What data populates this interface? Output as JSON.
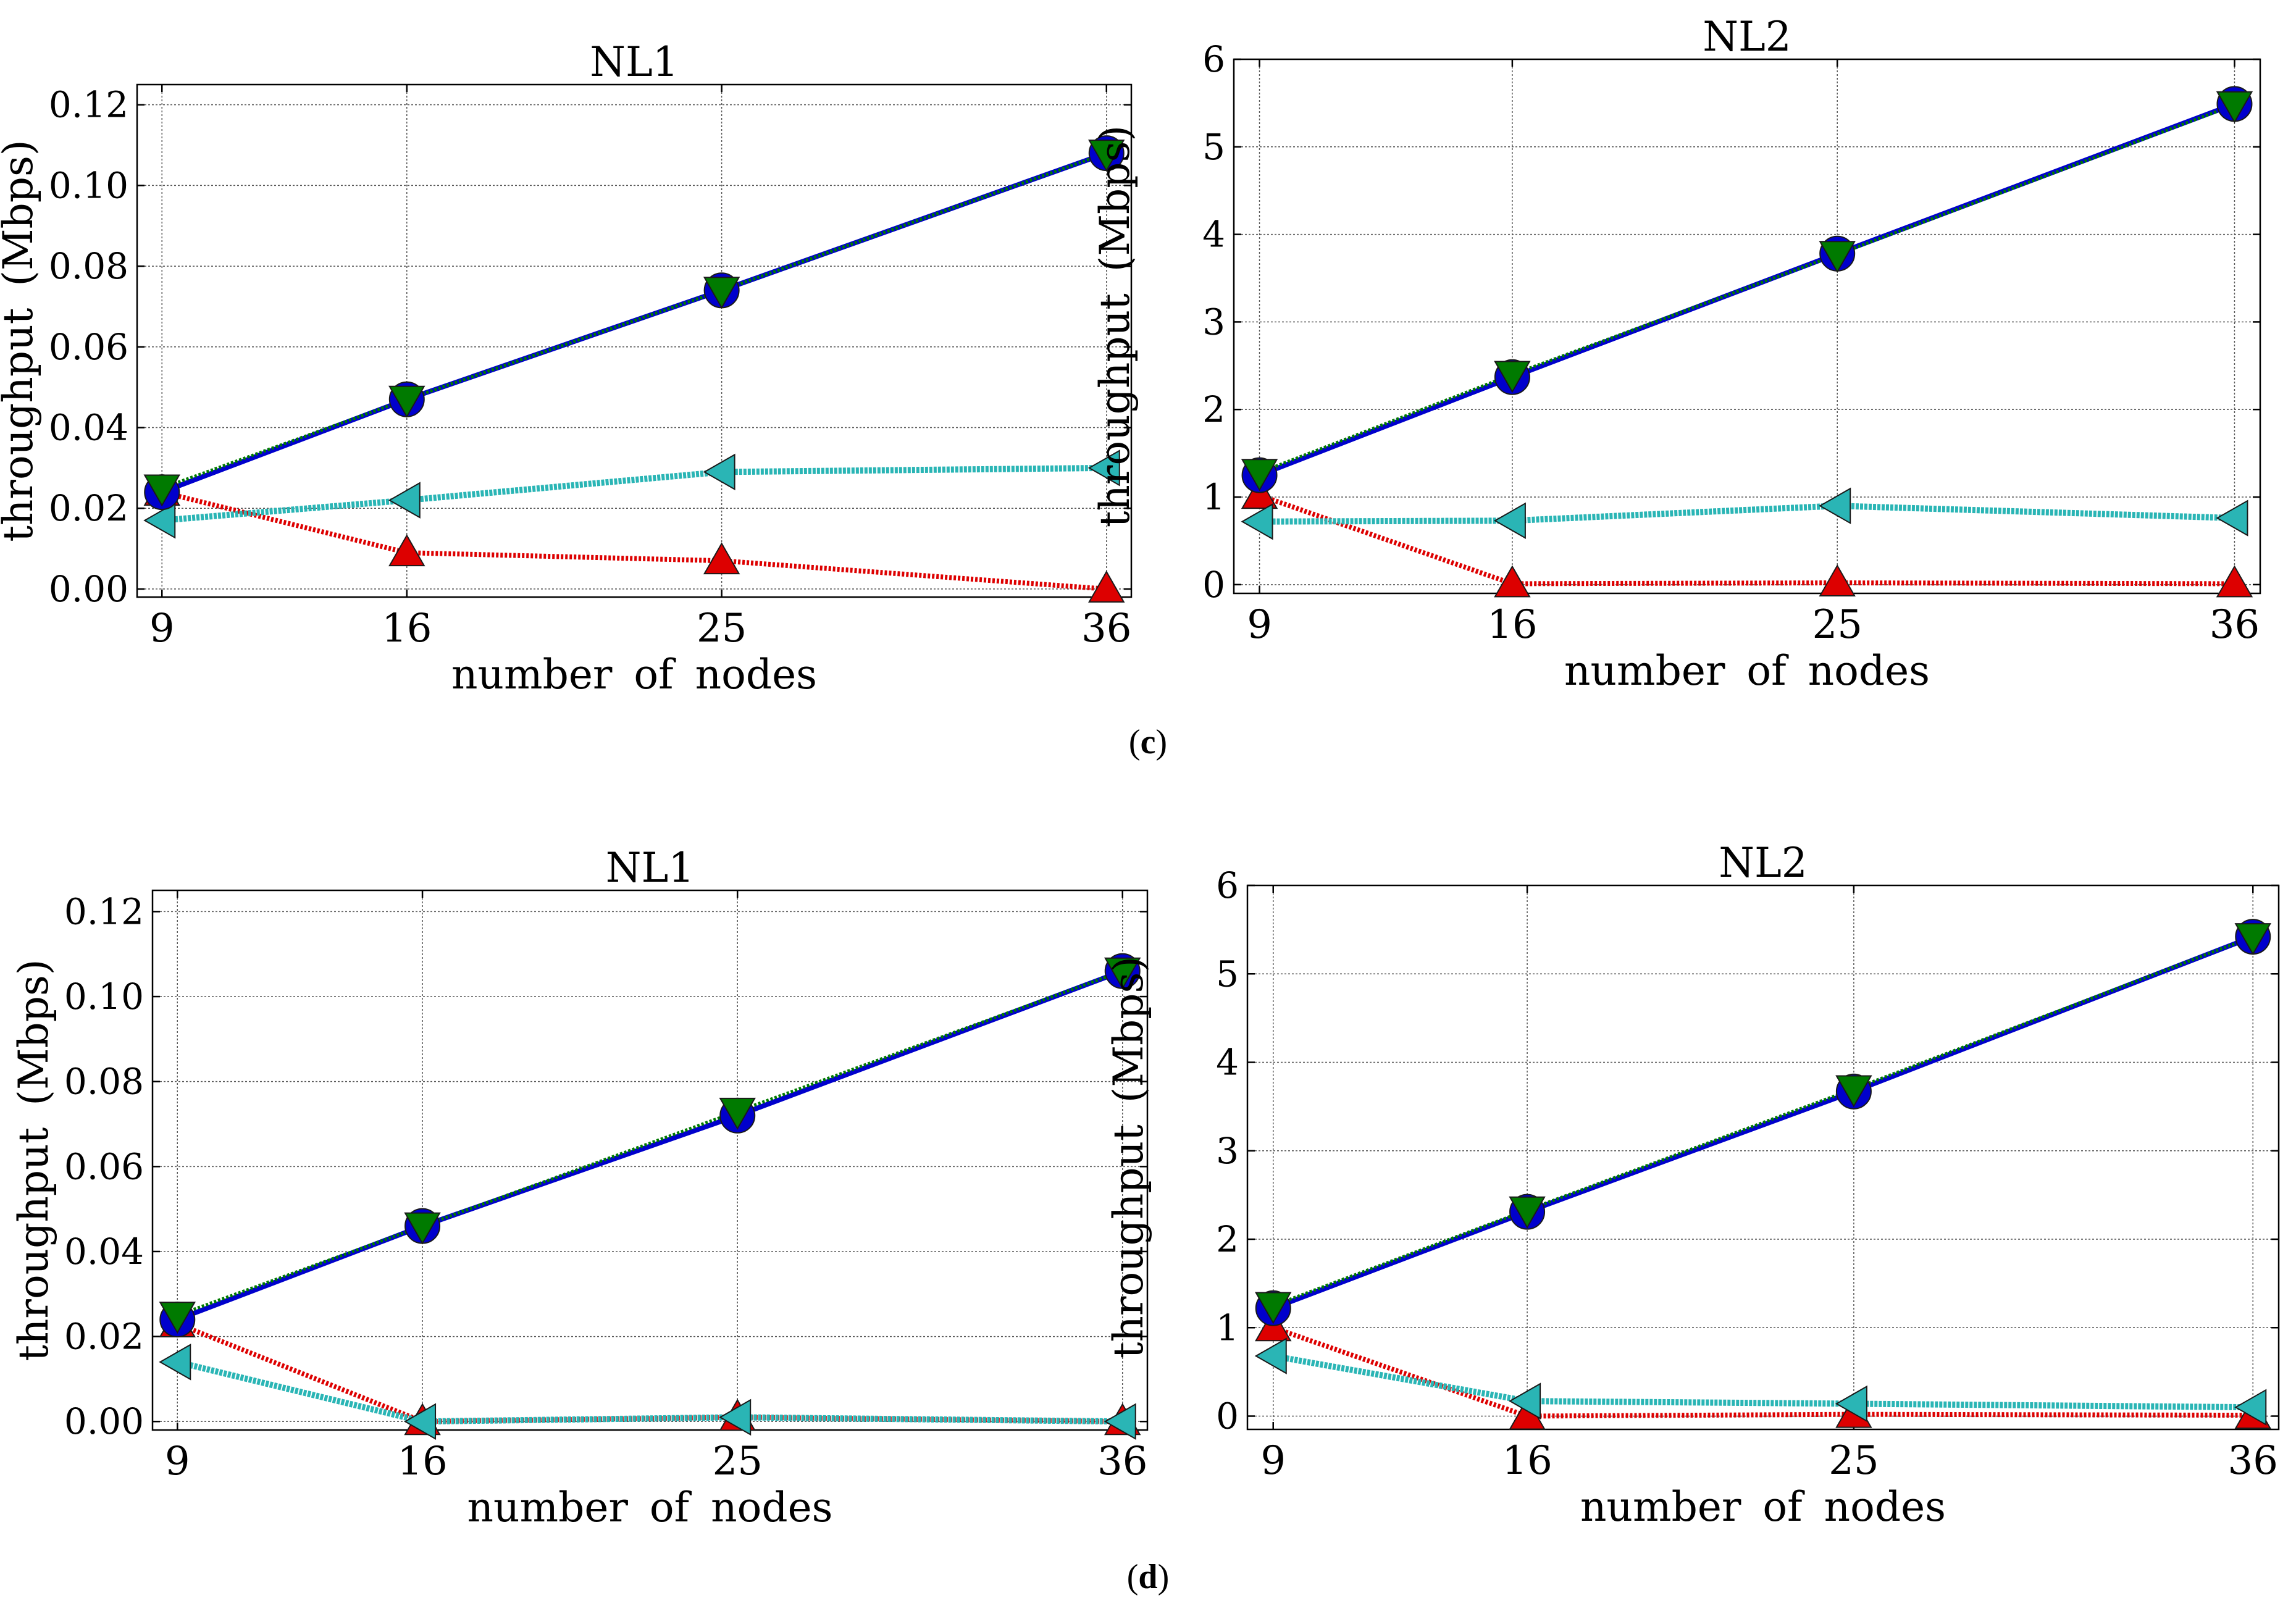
{
  "figure": {
    "panel_labels": [
      {
        "open": "(",
        "letter": "c",
        "close": ")"
      },
      {
        "open": "(",
        "letter": "d",
        "close": ")"
      }
    ]
  },
  "chart_data": [
    {
      "type": "line",
      "panel": "c",
      "title": "NL1",
      "xlabel": "number of nodes",
      "ylabel": "throughput (Mbps)",
      "categories": [
        "9",
        "16",
        "25",
        "36"
      ],
      "x": [
        9,
        16,
        25,
        36
      ],
      "ylim": [
        -0.002,
        0.125
      ],
      "yticks": [
        "0.00",
        "0.02",
        "0.04",
        "0.06",
        "0.08",
        "0.10",
        "0.12"
      ],
      "ytick_values": [
        0,
        0.02,
        0.04,
        0.06,
        0.08,
        0.1,
        0.12
      ],
      "grid": true,
      "series": [
        {
          "name": "blue-circle",
          "color": "#0000cc",
          "marker": "circle",
          "values": [
            0.024,
            0.047,
            0.074,
            0.108
          ]
        },
        {
          "name": "green-triangle-down",
          "color": "#007a00",
          "marker": "triangle-down",
          "values": [
            0.025,
            0.047,
            0.074,
            0.108
          ]
        },
        {
          "name": "cyan-triangle-left",
          "color": "#2ab5b5",
          "marker": "triangle-left",
          "values": [
            0.017,
            0.022,
            0.029,
            0.03
          ]
        },
        {
          "name": "red-triangle-up",
          "color": "#dd0000",
          "marker": "triangle-up",
          "values": [
            0.024,
            0.009,
            0.007,
            0.0
          ]
        }
      ]
    },
    {
      "type": "line",
      "panel": "c",
      "title": "NL2",
      "xlabel": "number of nodes",
      "ylabel": "throughput (Mbps)",
      "categories": [
        "9",
        "16",
        "25",
        "36"
      ],
      "x": [
        9,
        16,
        25,
        36
      ],
      "ylim": [
        -0.1,
        6
      ],
      "yticks": [
        "0",
        "1",
        "2",
        "3",
        "4",
        "5",
        "6"
      ],
      "ytick_values": [
        0,
        1,
        2,
        3,
        4,
        5,
        6
      ],
      "grid": true,
      "series": [
        {
          "name": "blue-circle",
          "color": "#0000cc",
          "marker": "circle",
          "values": [
            1.25,
            2.37,
            3.78,
            5.49
          ]
        },
        {
          "name": "green-triangle-down",
          "color": "#007a00",
          "marker": "triangle-down",
          "values": [
            1.28,
            2.4,
            3.77,
            5.48
          ]
        },
        {
          "name": "cyan-triangle-left",
          "color": "#2ab5b5",
          "marker": "triangle-left",
          "values": [
            0.72,
            0.73,
            0.9,
            0.76
          ]
        },
        {
          "name": "red-triangle-up",
          "color": "#dd0000",
          "marker": "triangle-up",
          "values": [
            1.02,
            0.01,
            0.02,
            0.01
          ]
        }
      ]
    },
    {
      "type": "line",
      "panel": "d",
      "title": "NL1",
      "xlabel": "number of nodes",
      "ylabel": "throughput (Mbps)",
      "categories": [
        "9",
        "16",
        "25",
        "36"
      ],
      "x": [
        9,
        16,
        25,
        36
      ],
      "ylim": [
        -0.002,
        0.125
      ],
      "yticks": [
        "0.00",
        "0.02",
        "0.04",
        "0.06",
        "0.08",
        "0.10",
        "0.12"
      ],
      "ytick_values": [
        0,
        0.02,
        0.04,
        0.06,
        0.08,
        0.1,
        0.12
      ],
      "grid": true,
      "series": [
        {
          "name": "blue-circle",
          "color": "#0000cc",
          "marker": "circle",
          "values": [
            0.024,
            0.046,
            0.072,
            0.106
          ]
        },
        {
          "name": "green-triangle-down",
          "color": "#007a00",
          "marker": "triangle-down",
          "values": [
            0.025,
            0.046,
            0.073,
            0.106
          ]
        },
        {
          "name": "cyan-triangle-left",
          "color": "#2ab5b5",
          "marker": "triangle-left",
          "values": [
            0.014,
            0.0,
            0.001,
            0.0
          ]
        },
        {
          "name": "red-triangle-up",
          "color": "#dd0000",
          "marker": "triangle-up",
          "values": [
            0.023,
            0.0,
            0.001,
            0.0
          ]
        }
      ]
    },
    {
      "type": "line",
      "panel": "d",
      "title": "NL2",
      "xlabel": "number of nodes",
      "ylabel": "throughput (Mbps)",
      "categories": [
        "9",
        "16",
        "25",
        "36"
      ],
      "x": [
        9,
        16,
        25,
        36
      ],
      "ylim": [
        -0.15,
        6
      ],
      "yticks": [
        "0",
        "1",
        "2",
        "3",
        "4",
        "5",
        "6"
      ],
      "ytick_values": [
        0,
        1,
        2,
        3,
        4,
        5,
        6
      ],
      "grid": true,
      "series": [
        {
          "name": "blue-circle",
          "color": "#0000cc",
          "marker": "circle",
          "values": [
            1.22,
            2.31,
            3.67,
            5.42
          ]
        },
        {
          "name": "green-triangle-down",
          "color": "#007a00",
          "marker": "triangle-down",
          "values": [
            1.25,
            2.33,
            3.7,
            5.42
          ]
        },
        {
          "name": "cyan-triangle-left",
          "color": "#2ab5b5",
          "marker": "triangle-left",
          "values": [
            0.68,
            0.17,
            0.14,
            0.1
          ]
        },
        {
          "name": "red-triangle-up",
          "color": "#dd0000",
          "marker": "triangle-up",
          "values": [
            1.0,
            0.0,
            0.02,
            0.01
          ]
        }
      ]
    }
  ]
}
